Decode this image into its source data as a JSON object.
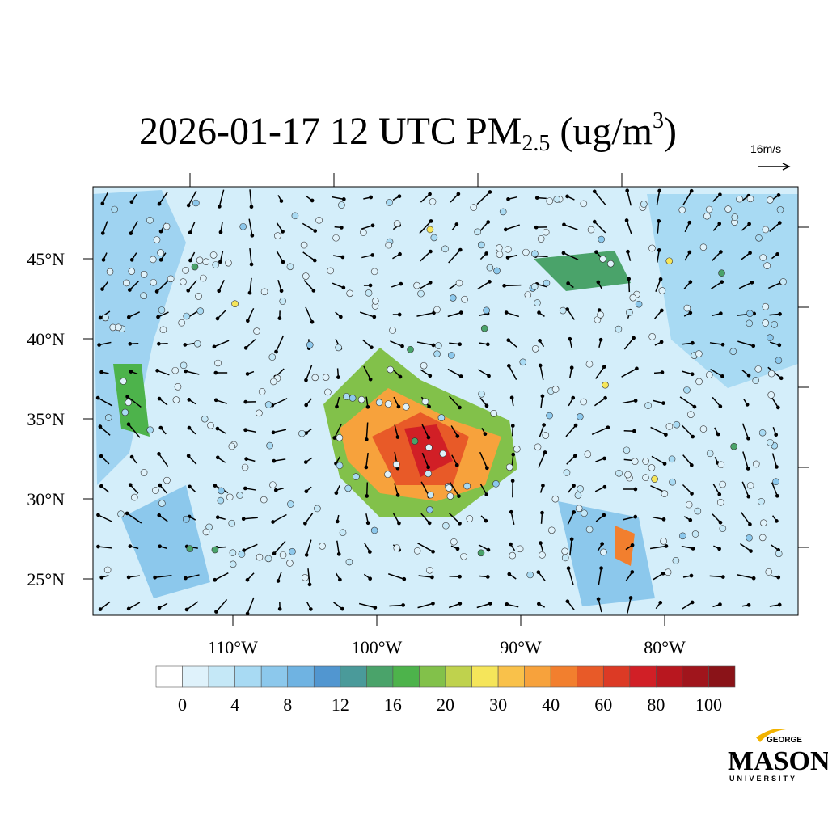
{
  "map_data": {
    "title": {
      "main": "2026-01-17 12 UTC PM",
      "sub": "2.5",
      "unit": " (ug/m",
      "sup": "3",
      "close": ")"
    },
    "reference_vector": "16m/s",
    "lat_labels": [
      {
        "value": 45,
        "label": "45°N"
      },
      {
        "value": 40,
        "label": "40°N"
      },
      {
        "value": 35,
        "label": "35°N"
      },
      {
        "value": 30,
        "label": "30°N"
      },
      {
        "value": 25,
        "label": "25°N"
      }
    ],
    "lon_labels": [
      {
        "value": -110,
        "label": "110°W"
      },
      {
        "value": -100,
        "label": "100°W"
      },
      {
        "value": -90,
        "label": "90°W"
      },
      {
        "value": -80,
        "label": "80°W"
      }
    ],
    "colorbar": {
      "colors": [
        "#ffffff",
        "#dff2fb",
        "#c5e8f7",
        "#a8daf3",
        "#8cc8ec",
        "#6fb3e2",
        "#5196d0",
        "#4a9a9a",
        "#4aa36a",
        "#4db34b",
        "#82c14a",
        "#bfd24d",
        "#f5e55a",
        "#f9c14a",
        "#f7a23c",
        "#f27f2e",
        "#e85a28",
        "#dc3a25",
        "#d11f26",
        "#b8171f",
        "#a0151c",
        "#8a1318"
      ],
      "ticks": [
        0,
        4,
        8,
        12,
        16,
        20,
        30,
        40,
        60,
        80,
        100
      ]
    },
    "logo": {
      "top": "GEORGE",
      "main": "MASON",
      "bottom": "UNIVERSITY"
    }
  }
}
